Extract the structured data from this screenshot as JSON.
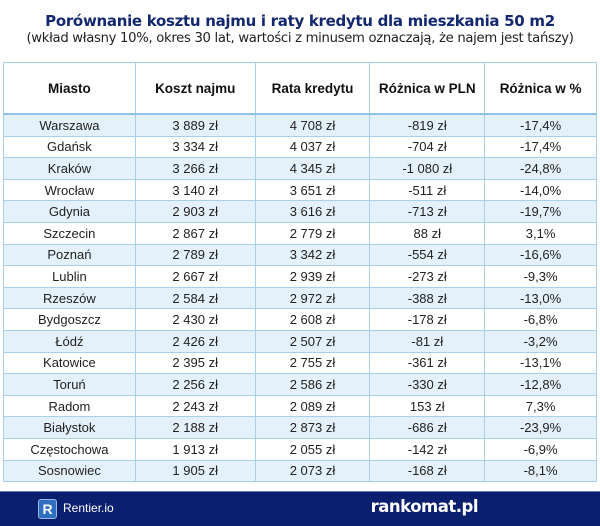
{
  "header": {
    "title": "Porównanie kosztu najmu i raty kredytu dla mieszkania 50 m2",
    "subtitle": "(wkład własny 10%, okres 30 lat, wartości z minusem oznaczają, że najem jest tańszy)"
  },
  "table": {
    "columns": [
      "Miasto",
      "Koszt najmu",
      "Rata kredytu",
      "Różnica w PLN",
      "Różnica w %"
    ],
    "rows": [
      [
        "Warszawa",
        "3 889 zł",
        "4 708 zł",
        "-819 zł",
        "-17,4%"
      ],
      [
        "Gdańsk",
        "3 334 zł",
        "4 037 zł",
        "-704 zł",
        "-17,4%"
      ],
      [
        "Kraków",
        "3 266 zł",
        "4 345 zł",
        "-1 080 zł",
        "-24,8%"
      ],
      [
        "Wrocław",
        "3 140 zł",
        "3 651 zł",
        "-511 zł",
        "-14,0%"
      ],
      [
        "Gdynia",
        "2 903 zł",
        "3 616 zł",
        "-713 zł",
        "-19,7%"
      ],
      [
        "Szczecin",
        "2 867 zł",
        "2 779 zł",
        "88 zł",
        "3,1%"
      ],
      [
        "Poznań",
        "2 789 zł",
        "3 342 zł",
        "-554 zł",
        "-16,6%"
      ],
      [
        "Lublin",
        "2 667 zł",
        "2 939 zł",
        "-273 zł",
        "-9,3%"
      ],
      [
        "Rzeszów",
        "2 584 zł",
        "2 972 zł",
        "-388 zł",
        "-13,0%"
      ],
      [
        "Bydgoszcz",
        "2 430 zł",
        "2 608 zł",
        "-178 zł",
        "-6,8%"
      ],
      [
        "Łódź",
        "2 426 zł",
        "2 507 zł",
        "-81 zł",
        "-3,2%"
      ],
      [
        "Katowice",
        "2 395 zł",
        "2 755 zł",
        "-361 zł",
        "-13,1%"
      ],
      [
        "Toruń",
        "2 256 zł",
        "2 586 zł",
        "-330 zł",
        "-12,8%"
      ],
      [
        "Radom",
        "2 243 zł",
        "2 089 zł",
        "153 zł",
        "7,3%"
      ],
      [
        "Białystok",
        "2 188 zł",
        "2 873 zł",
        "-686 zł",
        "-23,9%"
      ],
      [
        "Częstochowa",
        "1 913 zł",
        "2 055 zł",
        "-142 zł",
        "-6,9%"
      ],
      [
        "Sosnowiec",
        "1 905 zł",
        "2 073 zł",
        "-168 zł",
        "-8,1%"
      ]
    ]
  },
  "footer": {
    "rentier_logo_letter": "R",
    "rentier_name": "Rentier.io",
    "rankomat": "rankomat.pl"
  },
  "colors": {
    "title": "#14286e",
    "footer_bg": "#0b1f6f",
    "row_stripe": "#e4f1fa",
    "border": "#a9d0ea"
  }
}
